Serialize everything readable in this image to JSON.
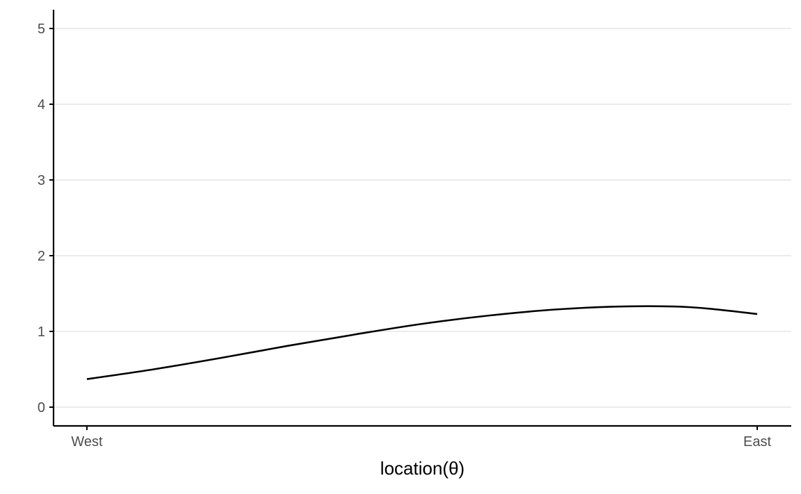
{
  "chart_data": {
    "type": "line",
    "title": "",
    "xlabel": "location(θ)",
    "ylabel": "",
    "x_tick_labels": [
      "West",
      "East"
    ],
    "x_range": [
      "West",
      "East"
    ],
    "y_ticks": [
      0,
      1,
      2,
      3,
      4,
      5
    ],
    "ylim": [
      -0.25,
      5.25
    ],
    "grid": "horizontal major gridlines",
    "legend": "none",
    "series": [
      {
        "x_fraction": [
          0,
          0.1,
          0.2,
          0.3,
          0.4,
          0.5,
          0.6,
          0.7,
          0.8,
          0.9,
          1.0
        ],
        "values": [
          0.37,
          0.5,
          0.65,
          0.81,
          0.96,
          1.1,
          1.21,
          1.29,
          1.33,
          1.32,
          1.23
        ],
        "color": "#000000"
      }
    ]
  }
}
